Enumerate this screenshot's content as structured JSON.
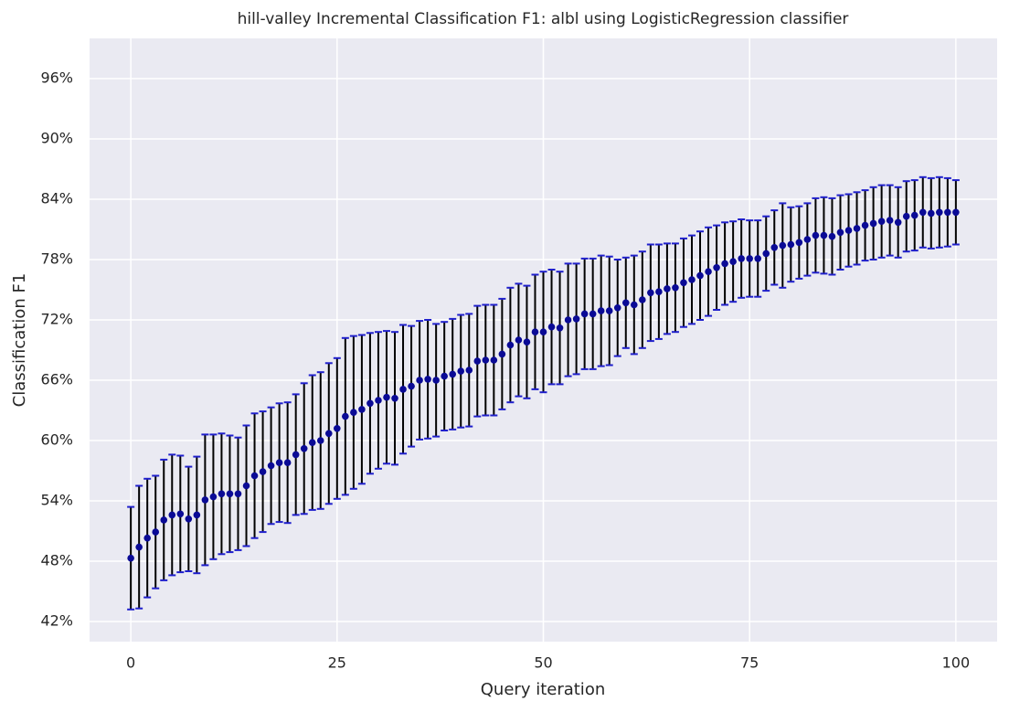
{
  "chart_data": {
    "type": "errorbar",
    "title": "hill-valley Incremental Classification F1: albl using LogisticRegression classifier",
    "x_label": "Query iteration",
    "y_label": "Classification F1",
    "x": [
      0,
      1,
      2,
      3,
      4,
      5,
      6,
      7,
      8,
      9,
      10,
      11,
      12,
      13,
      14,
      15,
      16,
      17,
      18,
      19,
      20,
      21,
      22,
      23,
      24,
      25,
      26,
      27,
      28,
      29,
      30,
      31,
      32,
      33,
      34,
      35,
      36,
      37,
      38,
      39,
      40,
      41,
      42,
      43,
      44,
      45,
      46,
      47,
      48,
      49,
      50,
      51,
      52,
      53,
      54,
      55,
      56,
      57,
      58,
      59,
      60,
      61,
      62,
      63,
      64,
      65,
      66,
      67,
      68,
      69,
      70,
      71,
      72,
      73,
      74,
      75,
      76,
      77,
      78,
      79,
      80,
      81,
      82,
      83,
      84,
      85,
      86,
      87,
      88,
      89,
      90,
      91,
      92,
      93,
      94,
      95,
      96,
      97,
      98,
      99,
      100
    ],
    "values": [
      48.3,
      49.4,
      50.3,
      50.9,
      52.1,
      52.6,
      52.7,
      52.2,
      52.6,
      54.1,
      54.4,
      54.7,
      54.7,
      54.7,
      55.5,
      56.5,
      56.9,
      57.5,
      57.8,
      57.8,
      58.6,
      59.2,
      59.8,
      60.0,
      60.7,
      61.2,
      62.4,
      62.8,
      63.1,
      63.7,
      64.0,
      64.3,
      64.2,
      65.1,
      65.4,
      66.0,
      66.1,
      66.0,
      66.4,
      66.6,
      66.9,
      67.0,
      67.9,
      68.0,
      68.0,
      68.6,
      69.5,
      70.0,
      69.8,
      70.8,
      70.8,
      71.3,
      71.2,
      72.0,
      72.1,
      72.6,
      72.6,
      72.9,
      72.9,
      73.2,
      73.7,
      73.5,
      74.0,
      74.7,
      74.8,
      75.1,
      75.2,
      75.7,
      76.0,
      76.4,
      76.8,
      77.2,
      77.6,
      77.8,
      78.1,
      78.1,
      78.1,
      78.6,
      79.2,
      79.4,
      79.5,
      79.7,
      80.0,
      80.4,
      80.4,
      80.3,
      80.7,
      80.9,
      81.1,
      81.4,
      81.6,
      81.8,
      81.9,
      81.7,
      82.3,
      82.4,
      82.7,
      82.6,
      82.7,
      82.7,
      82.7
    ],
    "errors": [
      5.1,
      6.1,
      5.9,
      5.6,
      6.0,
      6.0,
      5.8,
      5.2,
      5.8,
      6.5,
      6.2,
      6.0,
      5.8,
      5.6,
      6.0,
      6.2,
      6.0,
      5.8,
      5.9,
      6.0,
      6.0,
      6.5,
      6.7,
      6.8,
      7.0,
      7.0,
      7.8,
      7.6,
      7.4,
      7.0,
      6.8,
      6.6,
      6.6,
      6.4,
      6.0,
      5.9,
      5.9,
      5.6,
      5.4,
      5.5,
      5.6,
      5.6,
      5.5,
      5.5,
      5.5,
      5.5,
      5.7,
      5.6,
      5.6,
      5.7,
      6.0,
      5.7,
      5.6,
      5.6,
      5.5,
      5.5,
      5.5,
      5.5,
      5.4,
      4.8,
      4.5,
      4.9,
      4.8,
      4.8,
      4.7,
      4.5,
      4.4,
      4.4,
      4.4,
      4.4,
      4.4,
      4.2,
      4.1,
      4.0,
      3.9,
      3.8,
      3.8,
      3.7,
      3.7,
      4.2,
      3.7,
      3.6,
      3.6,
      3.7,
      3.8,
      3.8,
      3.7,
      3.6,
      3.6,
      3.5,
      3.6,
      3.6,
      3.5,
      3.5,
      3.5,
      3.5,
      3.5,
      3.5,
      3.5,
      3.4,
      3.2
    ],
    "color": "#0a0a96",
    "errorbar_color": "#000000",
    "cap_color": "#1f1fcc",
    "xlim": [
      -5,
      105
    ],
    "ylim": [
      40,
      100
    ],
    "xticks": [
      0,
      25,
      50,
      75,
      100
    ],
    "yticks": [
      {
        "value": 42,
        "label": "42%"
      },
      {
        "value": 48,
        "label": "48%"
      },
      {
        "value": 54,
        "label": "54%"
      },
      {
        "value": 60,
        "label": "60%"
      },
      {
        "value": 66,
        "label": "66%"
      },
      {
        "value": 72,
        "label": "72%"
      },
      {
        "value": 78,
        "label": "78%"
      },
      {
        "value": 84,
        "label": "84%"
      },
      {
        "value": 90,
        "label": "90%"
      },
      {
        "value": 96,
        "label": "96%"
      }
    ],
    "grid": true
  }
}
